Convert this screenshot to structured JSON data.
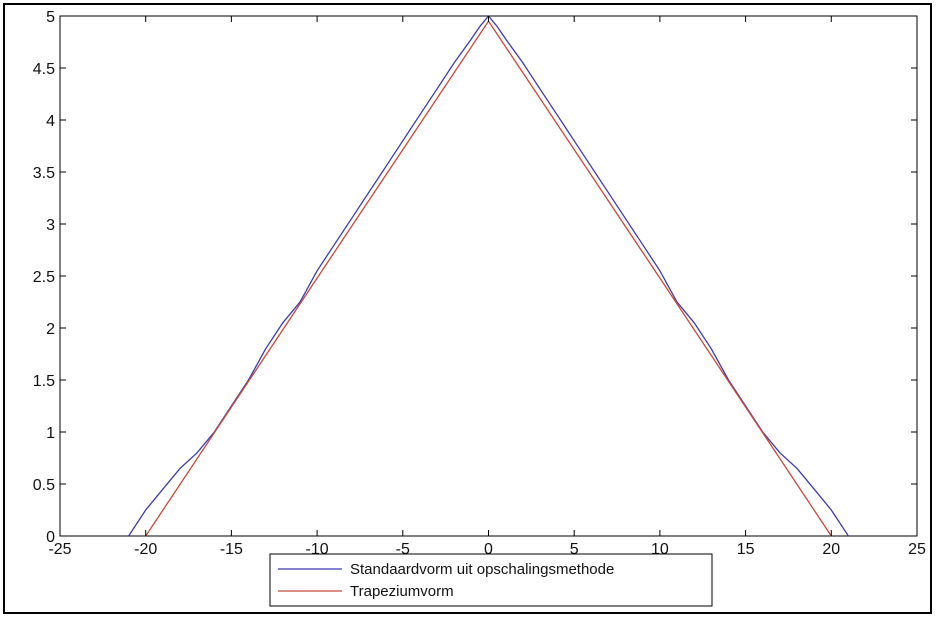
{
  "chart_data": {
    "type": "line",
    "title": "",
    "xlabel": "",
    "ylabel": "",
    "xlim": [
      -25,
      25
    ],
    "ylim": [
      0,
      5
    ],
    "x_ticks": [
      -25,
      -20,
      -15,
      -10,
      -5,
      0,
      5,
      10,
      15,
      20,
      25
    ],
    "y_ticks": [
      0,
      0.5,
      1,
      1.5,
      2,
      2.5,
      3,
      3.5,
      4,
      4.5,
      5
    ],
    "x_tick_labels": [
      "-25",
      "-20",
      "-15",
      "-10",
      "-5",
      "0",
      "5",
      "10",
      "15",
      "20",
      "25"
    ],
    "y_tick_labels": [
      "0",
      "0.5",
      "1",
      "1.5",
      "2",
      "2.5",
      "3",
      "3.5",
      "4",
      "4.5",
      "5"
    ],
    "grid": false,
    "legend_position": "bottom-center",
    "series": [
      {
        "name": "Standaardvorm uit opschalingsmethode",
        "color": "#3b3bb0",
        "x": [
          -21,
          -20,
          -19,
          -18,
          -17,
          -16,
          -15,
          -14,
          -13,
          -12,
          -11,
          -10,
          -9,
          -8,
          -7,
          -6,
          -5,
          -4,
          -3,
          -2,
          -1,
          -0.5,
          0,
          0.5,
          1,
          2,
          3,
          4,
          5,
          6,
          7,
          8,
          9,
          10,
          11,
          12,
          13,
          14,
          15,
          16,
          17,
          18,
          19,
          20,
          21
        ],
        "y": [
          0,
          0.25,
          0.45,
          0.65,
          0.8,
          1.0,
          1.25,
          1.5,
          1.8,
          2.05,
          2.25,
          2.55,
          2.8,
          3.05,
          3.3,
          3.55,
          3.8,
          4.05,
          4.3,
          4.55,
          4.78,
          4.9,
          5.0,
          4.9,
          4.78,
          4.55,
          4.3,
          4.05,
          3.8,
          3.55,
          3.3,
          3.05,
          2.8,
          2.55,
          2.25,
          2.05,
          1.8,
          1.5,
          1.25,
          1.0,
          0.8,
          0.65,
          0.45,
          0.25,
          0
        ]
      },
      {
        "name": "Trapeziumvorm",
        "color": "#c84a3a",
        "x": [
          -20,
          -10,
          0,
          10,
          20
        ],
        "y": [
          0,
          2.48,
          4.95,
          2.48,
          0
        ]
      }
    ]
  }
}
